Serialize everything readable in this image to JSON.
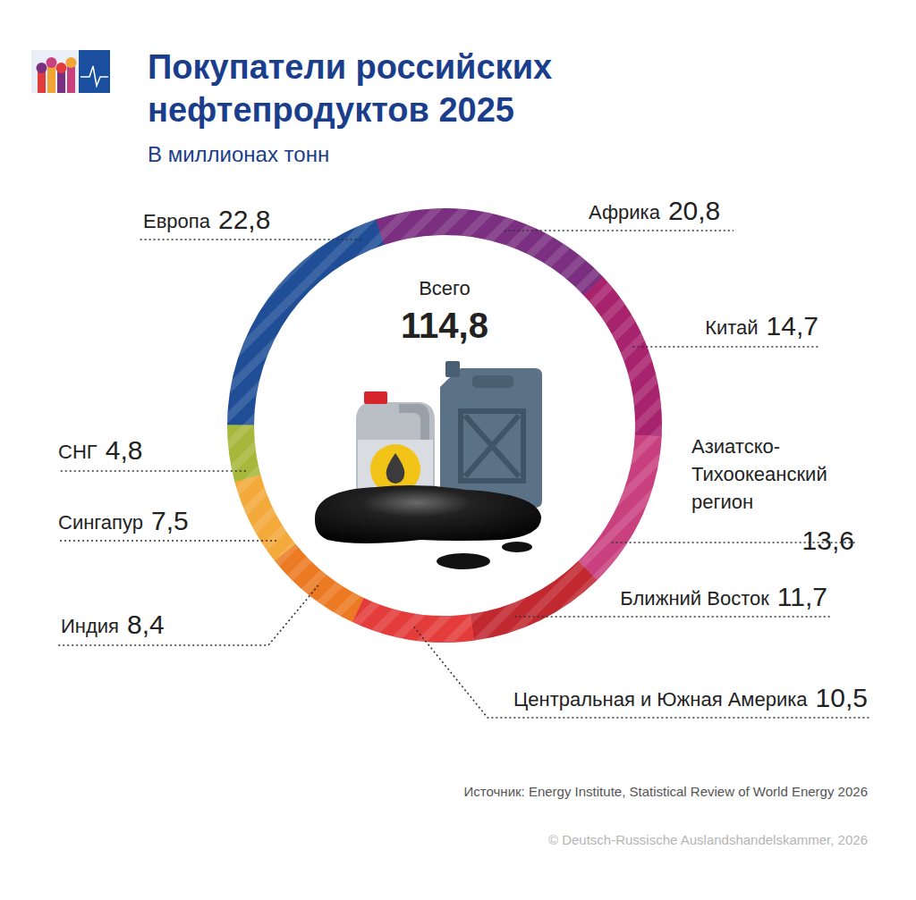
{
  "chart_data": {
    "type": "pie",
    "title": "Покупатели российских нефтепродуктов 2025",
    "subtitle": "В миллионах тонн",
    "categories": [
      "Европа",
      "Африка",
      "Китай",
      "Азиатско-Тихоокеанский регион",
      "Ближний Восток",
      "Центральная и Южная Америка",
      "Индия",
      "Сингапур",
      "СНГ"
    ],
    "values": [
      22.8,
      20.8,
      14.7,
      13.6,
      11.7,
      10.5,
      8.4,
      7.5,
      4.8
    ],
    "value_labels": [
      "22,8",
      "20,8",
      "14,7",
      "13,6",
      "11,7",
      "10,5",
      "8,4",
      "7,5",
      "4,8"
    ],
    "colors": [
      "#1f4e96",
      "#7a2f80",
      "#a8236d",
      "#c9407f",
      "#c1282f",
      "#e43b3b",
      "#ec7a23",
      "#f4a93b",
      "#a5b83b"
    ],
    "data_labels": true,
    "total": {
      "label": "Всего",
      "value": 114.8,
      "value_label": "114,8"
    },
    "source": "Источник: Energy Institute, Statistical Review of World Energy 2026",
    "copyright": "© Deutsch-Russische Auslandshandelskammer, 2026"
  }
}
